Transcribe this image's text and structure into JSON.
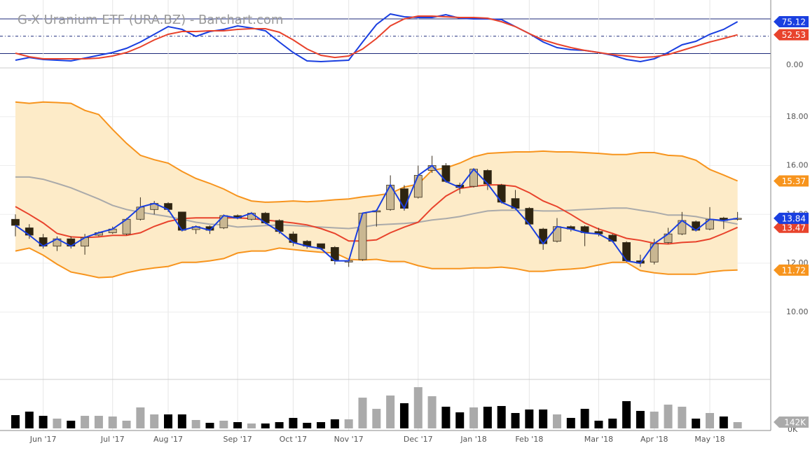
{
  "chart_data": [
    {
      "type": "line",
      "title": "G-X Uranium ETF (URA.BZ) - Barchart.com",
      "ylim": [
        -4.8,
        112.7
      ],
      "yticks": [
        {
          "value": 0,
          "label": "0.00"
        }
      ],
      "hlines": [
        {
          "value": 80
        },
        {
          "value": 50,
          "dashed": true
        },
        {
          "value": 20
        }
      ],
      "hline_color": "#1c2a7a",
      "series": [
        {
          "color": "#1a3fe0",
          "tag": true,
          "values": [
            8.5,
            13.3,
            9.7,
            8.5,
            7.3,
            12.1,
            17.0,
            21.8,
            29.1,
            40.0,
            53.3,
            66.7,
            61.8,
            49.7,
            58.2,
            61.8,
            67.9,
            64.2,
            59.4,
            40.0,
            21.8,
            7.3,
            6.1,
            7.3,
            8.5,
            40.0,
            70.3,
            88.5,
            83.6,
            82.4,
            82.4,
            87.3,
            81.2,
            80.0,
            80.0,
            78.8,
            66.7,
            54.5,
            40.0,
            30.3,
            26.7,
            25.5,
            21.8,
            17.0,
            9.7,
            6.1,
            10.9,
            21.8,
            35.2,
            41.2,
            53.3,
            61.8,
            75.12
          ]
        },
        {
          "color": "#e8432c",
          "tag": true,
          "values": [
            20.6,
            14.5,
            10.9,
            10.9,
            10.9,
            10.9,
            12.1,
            15.8,
            21.8,
            31.5,
            43.6,
            53.3,
            58.2,
            58.2,
            59.4,
            59.4,
            61.8,
            63.0,
            63.0,
            57.0,
            43.6,
            27.9,
            17.0,
            13.3,
            15.8,
            27.9,
            46.1,
            67.9,
            80.0,
            84.8,
            84.8,
            83.6,
            82.4,
            82.4,
            81.2,
            75.2,
            66.7,
            54.5,
            43.6,
            36.4,
            30.3,
            25.5,
            21.8,
            18.2,
            15.8,
            13.3,
            14.5,
            18.2,
            25.5,
            32.7,
            40.0,
            46.1,
            52.53
          ]
        }
      ]
    },
    {
      "type": "candlestick",
      "ylim": [
        7.3,
        20.0
      ],
      "grid": true,
      "yticks": [
        {
          "value": 10,
          "label": "10.00"
        },
        {
          "value": 12,
          "label": "12.00"
        },
        {
          "value": 14,
          "label": "14.00"
        },
        {
          "value": 16,
          "label": "16.00"
        },
        {
          "value": 18,
          "label": "18.00"
        }
      ],
      "up_color": "#c9b792",
      "down_color": "#2e2410",
      "close_line_color": "#1a3fe0",
      "close_tag": true,
      "band_fill": "#fdebc8",
      "open": [
        13.8,
        13.45,
        13.05,
        12.7,
        13.0,
        12.7,
        13.15,
        13.25,
        13.2,
        13.8,
        14.2,
        14.45,
        14.1,
        13.38,
        13.5,
        13.45,
        13.95,
        13.8,
        14.05,
        13.75,
        13.2,
        12.9,
        12.8,
        12.65,
        12.05,
        12.15,
        14.1,
        14.2,
        15.05,
        14.7,
        15.8,
        16.0,
        15.2,
        15.15,
        15.8,
        15.2,
        14.65,
        14.25,
        13.4,
        12.9,
        13.5,
        13.5,
        13.3,
        13.15,
        12.85,
        12.1,
        12.05,
        12.85,
        13.2,
        13.7,
        13.4,
        13.85,
        13.8
      ],
      "high": [
        14.0,
        13.6,
        13.2,
        13.1,
        13.1,
        13.2,
        13.3,
        13.5,
        13.85,
        14.7,
        14.55,
        14.5,
        14.1,
        13.55,
        13.55,
        14.0,
        14.0,
        14.1,
        14.1,
        13.8,
        13.3,
        12.95,
        12.8,
        12.7,
        12.1,
        14.05,
        14.2,
        15.6,
        15.2,
        16.0,
        16.4,
        16.1,
        15.3,
        15.9,
        15.85,
        15.25,
        15.0,
        14.3,
        13.45,
        13.85,
        13.55,
        13.55,
        13.45,
        13.2,
        12.9,
        12.35,
        13.0,
        13.45,
        14.1,
        13.75,
        14.3,
        13.9,
        14.1
      ],
      "low": [
        13.1,
        13.0,
        12.6,
        12.5,
        12.6,
        12.35,
        13.1,
        13.2,
        13.15,
        13.75,
        14.0,
        14.1,
        13.3,
        13.2,
        13.2,
        13.4,
        13.8,
        13.75,
        13.6,
        13.2,
        12.7,
        12.6,
        12.55,
        11.95,
        11.85,
        12.1,
        13.5,
        14.15,
        14.15,
        14.65,
        15.7,
        15.3,
        14.85,
        15.1,
        15.0,
        14.45,
        14.2,
        13.55,
        12.55,
        12.85,
        13.3,
        12.7,
        13.1,
        12.85,
        12.05,
        11.85,
        11.95,
        12.8,
        13.15,
        13.3,
        13.35,
        13.4,
        13.75
      ],
      "close": [
        13.55,
        13.15,
        12.7,
        13.0,
        12.7,
        13.05,
        13.25,
        13.4,
        13.8,
        14.3,
        14.45,
        14.2,
        13.35,
        13.5,
        13.35,
        13.95,
        13.85,
        14.05,
        13.65,
        13.3,
        12.85,
        12.7,
        12.6,
        12.1,
        12.1,
        14.05,
        14.15,
        15.2,
        14.25,
        15.6,
        16.0,
        15.35,
        15.1,
        15.85,
        15.25,
        14.5,
        14.25,
        13.6,
        12.8,
        13.5,
        13.4,
        13.25,
        13.2,
        12.9,
        12.1,
        12.0,
        12.8,
        13.2,
        13.75,
        13.35,
        13.8,
        13.75,
        13.84
      ],
      "overlays": [
        {
          "color": "#aaaaaa",
          "values": [
            15.53,
            15.53,
            15.44,
            15.27,
            15.09,
            14.86,
            14.63,
            14.37,
            14.2,
            14.09,
            14.0,
            13.91,
            13.8,
            13.68,
            13.6,
            13.57,
            13.48,
            13.51,
            13.54,
            13.57,
            13.54,
            13.51,
            13.48,
            13.45,
            13.42,
            13.48,
            13.57,
            13.6,
            13.63,
            13.68,
            13.77,
            13.83,
            13.91,
            14.03,
            14.14,
            14.17,
            14.17,
            14.17,
            14.14,
            14.14,
            14.17,
            14.2,
            14.23,
            14.26,
            14.26,
            14.17,
            14.09,
            13.97,
            13.97,
            13.91,
            13.8,
            13.71,
            13.6
          ]
        },
        {
          "color": "#f7941d",
          "tag": true,
          "values": [
            18.6,
            18.55,
            18.6,
            18.58,
            18.55,
            18.26,
            18.09,
            17.48,
            16.91,
            16.42,
            16.24,
            16.1,
            15.76,
            15.47,
            15.27,
            15.04,
            14.75,
            14.55,
            14.5,
            14.52,
            14.55,
            14.52,
            14.55,
            14.6,
            14.63,
            14.72,
            14.78,
            14.86,
            15.12,
            15.24,
            15.81,
            15.9,
            16.1,
            16.36,
            16.5,
            16.53,
            16.56,
            16.56,
            16.59,
            16.56,
            16.56,
            16.53,
            16.5,
            16.45,
            16.45,
            16.53,
            16.53,
            16.42,
            16.39,
            16.22,
            15.84,
            15.61,
            15.37
          ]
        },
        {
          "color": "#f7941d",
          "tag": true,
          "values": [
            12.5,
            12.62,
            12.33,
            11.96,
            11.64,
            11.53,
            11.41,
            11.44,
            11.61,
            11.73,
            11.81,
            11.87,
            12.04,
            12.04,
            12.1,
            12.19,
            12.42,
            12.5,
            12.5,
            12.62,
            12.56,
            12.5,
            12.45,
            12.42,
            12.16,
            12.13,
            12.16,
            12.07,
            12.07,
            11.9,
            11.78,
            11.78,
            11.78,
            11.81,
            11.81,
            11.84,
            11.78,
            11.67,
            11.67,
            11.73,
            11.76,
            11.81,
            11.93,
            12.04,
            12.04,
            11.7,
            11.61,
            11.55,
            11.55,
            11.55,
            11.64,
            11.7,
            11.72
          ]
        },
        {
          "color": "#e8432c",
          "tag": true,
          "values": [
            14.32,
            14.0,
            13.65,
            13.22,
            13.08,
            13.05,
            13.08,
            13.14,
            13.14,
            13.25,
            13.51,
            13.71,
            13.83,
            13.86,
            13.86,
            13.86,
            13.86,
            13.83,
            13.77,
            13.71,
            13.65,
            13.57,
            13.42,
            13.22,
            12.91,
            12.91,
            12.96,
            13.25,
            13.48,
            13.68,
            14.26,
            14.75,
            15.06,
            15.15,
            15.21,
            15.21,
            15.15,
            14.89,
            14.55,
            14.32,
            14.0,
            13.65,
            13.4,
            13.22,
            13.02,
            12.94,
            12.82,
            12.79,
            12.85,
            12.88,
            12.99,
            13.22,
            13.47
          ]
        }
      ]
    },
    {
      "type": "bar",
      "ylim": [
        0,
        1060
      ],
      "yticks": [
        {
          "value": 0,
          "label": "0K"
        }
      ],
      "up_color": "#aaaaaa",
      "down_color": "#000000",
      "tag_color": "#aaaaaa",
      "categories": [
        null,
        null,
        "Jun '17",
        null,
        null,
        null,
        null,
        "Jul '17",
        null,
        null,
        null,
        "Aug '17",
        null,
        null,
        null,
        null,
        "Sep '17",
        null,
        null,
        null,
        "Oct '17",
        null,
        null,
        null,
        "Nov '17",
        null,
        null,
        null,
        null,
        "Dec '17",
        null,
        null,
        null,
        "Jan '18",
        null,
        null,
        null,
        "Feb '18",
        null,
        null,
        null,
        null,
        "Mar '18",
        null,
        null,
        null,
        "Apr '18",
        null,
        null,
        null,
        "May '18",
        null,
        null
      ],
      "values": [
        300,
        379,
        284,
        221,
        174,
        284,
        284,
        269,
        174,
        474,
        316,
        316,
        316,
        190,
        126,
        174,
        142,
        111,
        111,
        142,
        237,
        126,
        142,
        205,
        205,
        695,
        442,
        743,
        569,
        932,
        727,
        490,
        363,
        474,
        490,
        506,
        348,
        427,
        427,
        316,
        237,
        442,
        174,
        221,
        616,
        395,
        379,
        537,
        490,
        221,
        348,
        269,
        142
      ],
      "value_labels": [
        null,
        null,
        null,
        null,
        null,
        null,
        null,
        null,
        null,
        null,
        null,
        null,
        null,
        null,
        null,
        null,
        null,
        null,
        null,
        null,
        null,
        null,
        null,
        null,
        null,
        null,
        null,
        null,
        null,
        null,
        null,
        null,
        null,
        null,
        null,
        null,
        null,
        null,
        null,
        null,
        null,
        null,
        null,
        null,
        null,
        null,
        null,
        null,
        null,
        null,
        null,
        null,
        "142K"
      ]
    }
  ]
}
